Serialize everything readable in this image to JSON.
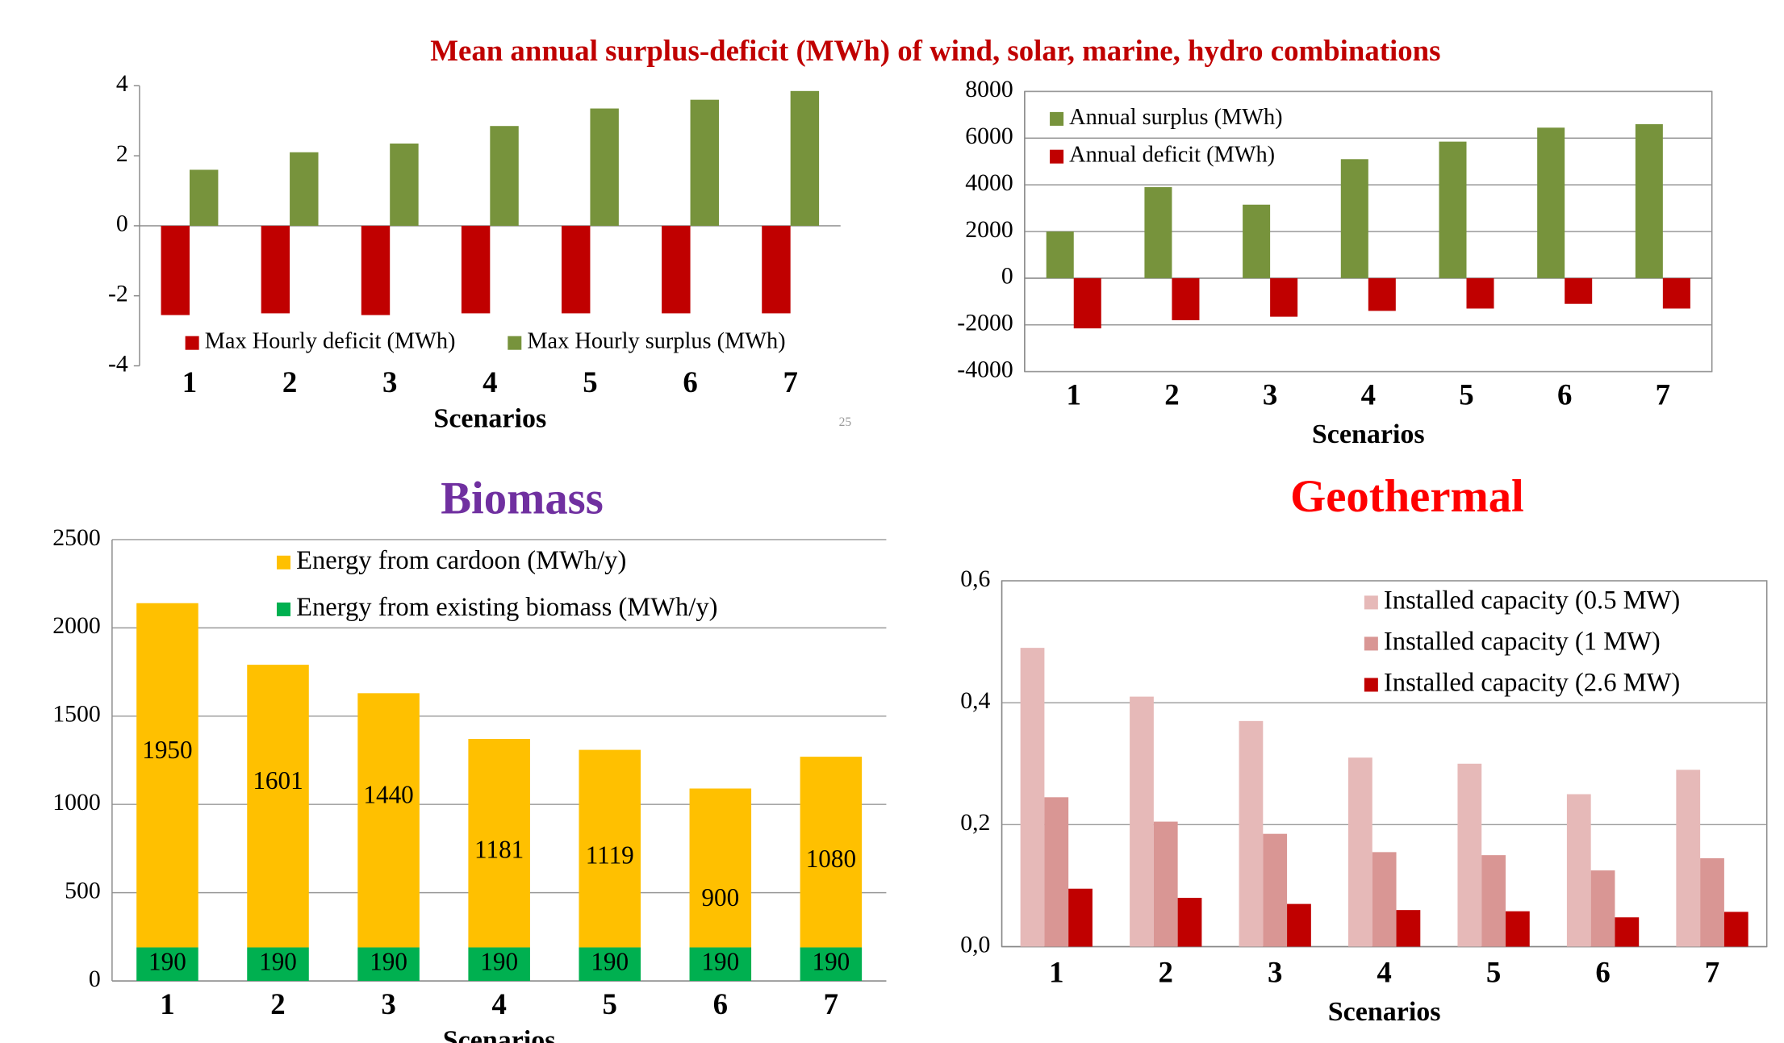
{
  "heading": "Mean annual surplus-deficit (MWh) of wind, solar, marine, hydro combinations",
  "page_number": "25",
  "chart_data": [
    {
      "type": "bar",
      "x_label": "Scenarios",
      "categories": [
        "1",
        "2",
        "3",
        "4",
        "5",
        "6",
        "7"
      ],
      "series": [
        {
          "name": "Max Hourly deficit (MWh)",
          "color": "#c00000",
          "values": [
            -2.55,
            -2.5,
            -2.55,
            -2.5,
            -2.5,
            -2.5,
            -2.5
          ]
        },
        {
          "name": "Max Hourly surplus (MWh)",
          "color": "#77933c",
          "values": [
            1.6,
            2.1,
            2.35,
            2.85,
            3.35,
            3.6,
            3.85
          ]
        }
      ],
      "ylim": [
        -4,
        4
      ],
      "yticks": [
        -4,
        -2,
        0,
        2,
        4
      ],
      "grid": false,
      "legend": "bottom"
    },
    {
      "type": "bar",
      "x_label": "Scenarios",
      "categories": [
        "1",
        "2",
        "3",
        "4",
        "5",
        "6",
        "7"
      ],
      "series": [
        {
          "name": "Annual surplus (MWh)",
          "color": "#77933c",
          "values": [
            2000,
            3900,
            3150,
            5100,
            5850,
            6450,
            6600
          ]
        },
        {
          "name": "Annual deficit (MWh)",
          "color": "#c00000",
          "values": [
            -2150,
            -1800,
            -1650,
            -1400,
            -1300,
            -1100,
            -1300
          ]
        }
      ],
      "ylim": [
        -4000,
        8000
      ],
      "yticks": [
        -4000,
        -2000,
        0,
        2000,
        4000,
        6000,
        8000
      ],
      "grid": true,
      "legend": "top-left"
    },
    {
      "type": "stacked-bar",
      "title": "Biomass",
      "x_label": "Scenarios",
      "categories": [
        "1",
        "2",
        "3",
        "4",
        "5",
        "6",
        "7"
      ],
      "series": [
        {
          "name": "Energy from cardoon  (MWh/y)",
          "color": "#ffc000",
          "values": [
            1950,
            1601,
            1440,
            1181,
            1119,
            900,
            1080
          ]
        },
        {
          "name": "Energy from existing biomass (MWh/y)",
          "color": "#00b050",
          "values": [
            190,
            190,
            190,
            190,
            190,
            190,
            190
          ]
        }
      ],
      "ylim": [
        0,
        2500
      ],
      "yticks": [
        0,
        500,
        1000,
        1500,
        2000,
        2500
      ],
      "grid": true,
      "legend": "top-left",
      "data_labels": true
    },
    {
      "type": "bar",
      "title": "Geothermal",
      "x_label": "Scenarios",
      "categories": [
        "1",
        "2",
        "3",
        "4",
        "5",
        "6",
        "7"
      ],
      "series": [
        {
          "name": "Installed capacity (0.5 MW)",
          "color": "#e6b9b8",
          "values": [
            0.49,
            0.41,
            0.37,
            0.31,
            0.3,
            0.25,
            0.29
          ]
        },
        {
          "name": "Installed capacity (1 MW)",
          "color": "#d99694",
          "values": [
            0.245,
            0.205,
            0.185,
            0.155,
            0.15,
            0.125,
            0.145
          ]
        },
        {
          "name": "Installed capacity (2.6 MW)",
          "color": "#c00000",
          "values": [
            0.095,
            0.08,
            0.07,
            0.06,
            0.058,
            0.048,
            0.057
          ]
        }
      ],
      "ylim": [
        0,
        0.6
      ],
      "yticks": [
        {
          "value": 0,
          "label": "0,0"
        },
        {
          "value": 0.2,
          "label": "0,2"
        },
        {
          "value": 0.4,
          "label": "0,4"
        },
        {
          "value": 0.6,
          "label": "0,6"
        }
      ],
      "grid": true,
      "legend": "top-right"
    }
  ]
}
